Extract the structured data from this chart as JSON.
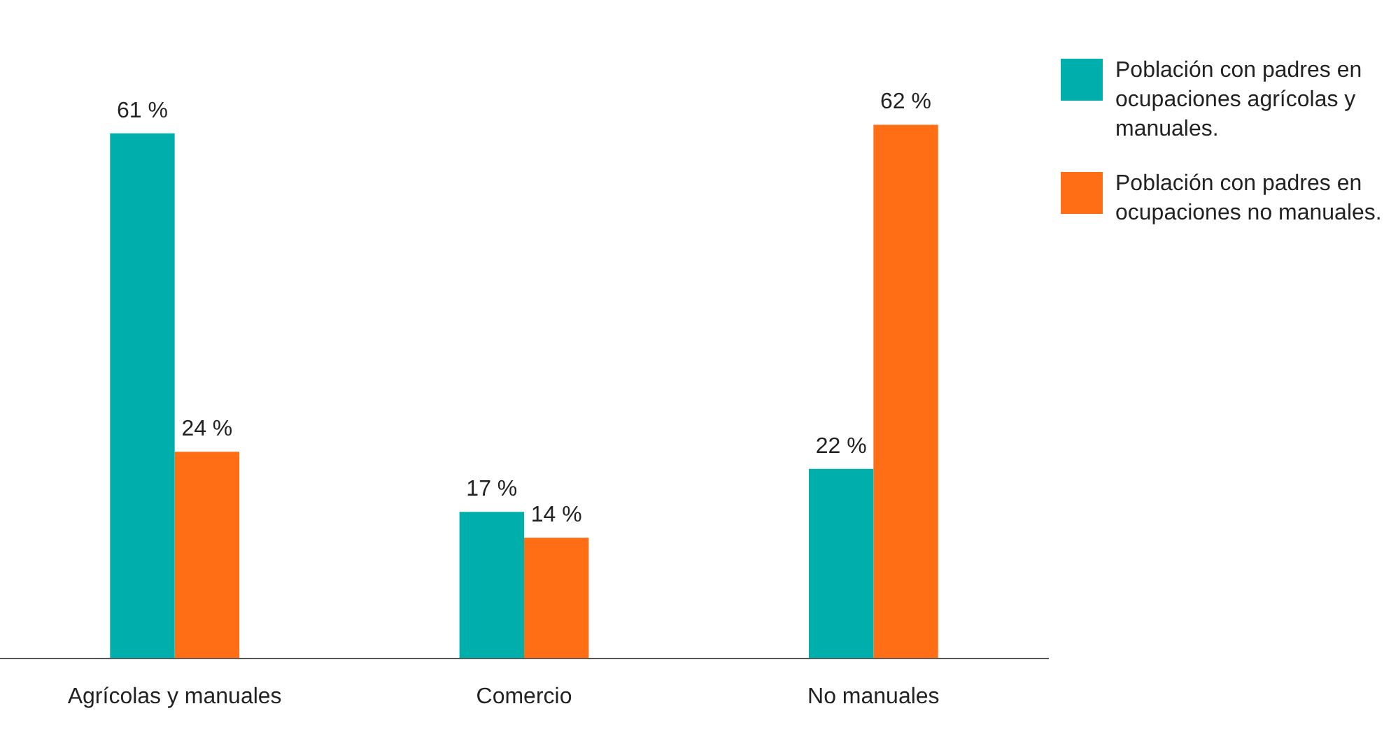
{
  "chart_data": {
    "type": "bar",
    "categories": [
      "Agrícolas y manuales",
      "Comercio",
      "No manuales"
    ],
    "series": [
      {
        "name": "Población con padres en ocupaciones agrícolas y manuales.",
        "color": "#00aeac",
        "values": [
          61,
          17,
          22
        ],
        "value_labels": [
          "61 %",
          "17 %",
          "22 %"
        ]
      },
      {
        "name": "Población con padres en ocupaciones no manuales.",
        "color": "#ff6d14",
        "values": [
          24,
          14,
          62
        ],
        "value_labels": [
          "24 %",
          "14 %",
          "62 %"
        ]
      }
    ],
    "legend": "top right",
    "grid": false
  }
}
